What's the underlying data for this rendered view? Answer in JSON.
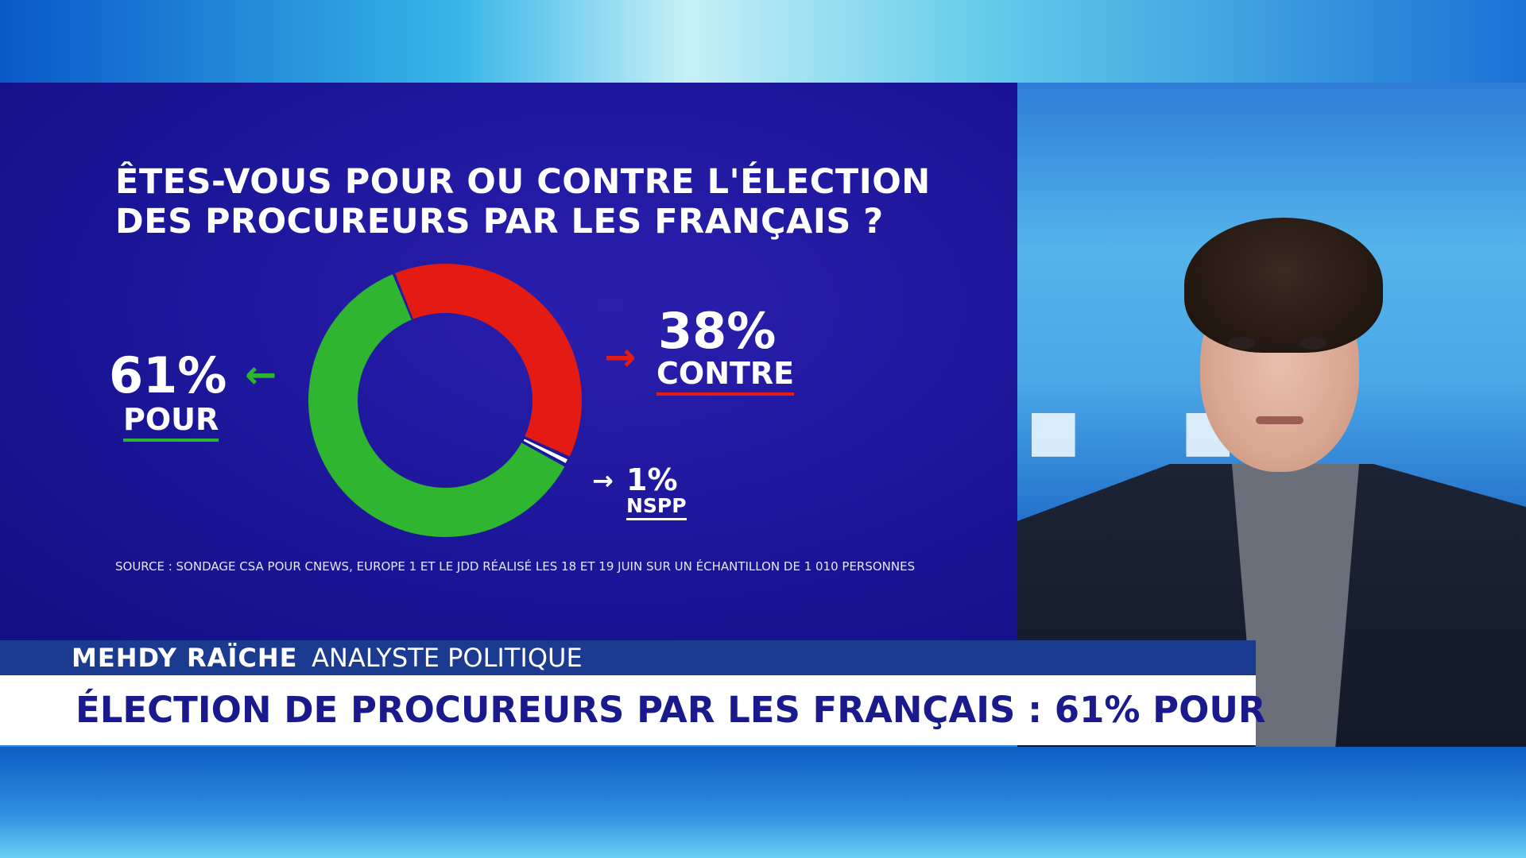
{
  "chart_data": {
    "type": "pie",
    "style": "donut",
    "title_lines": [
      "ÊTES-VOUS POUR OU CONTRE L'ÉLECTION",
      "DES PROCUREURS PAR LES FRANÇAIS ?"
    ],
    "slices": [
      {
        "label": "CONTRE",
        "value": 38,
        "display": "38%",
        "color": "#e31b12"
      },
      {
        "label": "NSPP",
        "value": 1,
        "display": "1%",
        "color": "#ffffff"
      },
      {
        "label": "POUR",
        "value": 61,
        "display": "61%",
        "color": "#2fb52f"
      }
    ],
    "source": "SOURCE : SONDAGE CSA POUR CNEWS, EUROPE 1 ET LE JDD RÉALISÉ LES 18 ET 19 JUIN SUR UN ÉCHANTILLON DE 1 010 PERSONNES"
  },
  "lower_third": {
    "name": "MEHDY RAÏCHE",
    "role": "ANALYSTE POLITIQUE",
    "headline": "ÉLECTION DE PROCUREURS PAR LES FRANÇAIS : 61% POUR"
  },
  "colors": {
    "panel_bg": "#1a1596",
    "pour": "#2fb52f",
    "contre": "#e31b12",
    "headline_text": "#1a1a8c"
  }
}
